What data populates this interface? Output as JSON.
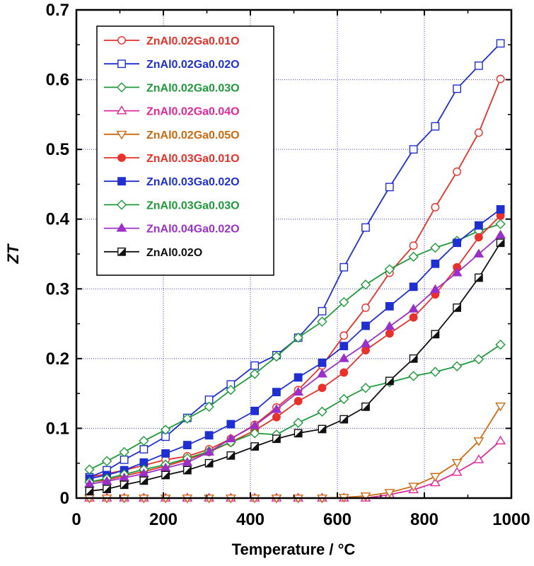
{
  "chart_data": {
    "type": "line",
    "title": "",
    "xlabel": "Temperature / °C",
    "ylabel": "ZT",
    "xlim": [
      0,
      1000
    ],
    "ylim": [
      0,
      0.7
    ],
    "xticks": [
      "0",
      "200",
      "400",
      "600",
      "800",
      "1000"
    ],
    "yticks": [
      "0",
      "0.1",
      "0.2",
      "0.3",
      "0.4",
      "0.5",
      "0.6",
      "0.7"
    ],
    "grid": true,
    "legend_position": "top-left",
    "x": [
      30,
      70,
      110,
      155,
      205,
      255,
      305,
      355,
      410,
      460,
      510,
      565,
      615,
      665,
      720,
      775,
      825,
      875,
      925,
      975
    ],
    "series": [
      {
        "name": "ZnAl0.02Ga0.01O",
        "color": "#e8312a",
        "marker": "circle",
        "filled": false,
        "values": [
          0.03,
          0.035,
          0.04,
          0.047,
          0.055,
          0.06,
          0.07,
          0.085,
          0.105,
          0.13,
          0.155,
          0.19,
          0.233,
          0.273,
          0.323,
          0.362,
          0.417,
          0.468,
          0.524,
          0.601
        ]
      },
      {
        "name": "ZnAl0.02Ga0.02O",
        "color": "#1f2fd0",
        "marker": "square",
        "filled": false,
        "values": [
          0.03,
          0.04,
          0.055,
          0.07,
          0.088,
          0.115,
          0.141,
          0.163,
          0.19,
          0.205,
          0.23,
          0.268,
          0.331,
          0.388,
          0.446,
          0.5,
          0.533,
          0.587,
          0.62,
          0.652
        ]
      },
      {
        "name": "ZnAl0.02Ga0.03O",
        "color": "#1e9a3a",
        "marker": "diamond",
        "filled": false,
        "values": [
          0.041,
          0.053,
          0.066,
          0.082,
          0.098,
          0.114,
          0.131,
          0.155,
          0.178,
          0.203,
          0.23,
          0.253,
          0.281,
          0.306,
          0.328,
          0.346,
          0.359,
          0.369,
          0.383,
          0.393
        ]
      },
      {
        "name": "ZnAl0.02Ga0.04O",
        "color": "#e0289c",
        "marker": "triangle-up",
        "filled": false,
        "values": [
          0,
          0,
          0,
          0,
          0,
          0,
          0,
          0,
          0,
          0,
          0,
          0,
          0,
          0,
          0.005,
          0.012,
          0.022,
          0.037,
          0.055,
          0.082
        ]
      },
      {
        "name": "ZnAl0.02Ga0.05O",
        "color": "#cc6a10",
        "marker": "triangle-down",
        "filled": false,
        "values": [
          0,
          0,
          0,
          0,
          0,
          0,
          0,
          0,
          0,
          0,
          0,
          0,
          0.001,
          0.003,
          0.008,
          0.017,
          0.031,
          0.051,
          0.082,
          0.132
        ]
      },
      {
        "name": "ZnAl0.03Ga0.01O",
        "color": "#e8312a",
        "marker": "circle",
        "filled": true,
        "values": [
          0.023,
          0.026,
          0.032,
          0.038,
          0.046,
          0.055,
          0.066,
          0.08,
          0.097,
          0.116,
          0.139,
          0.158,
          0.18,
          0.212,
          0.236,
          0.259,
          0.292,
          0.331,
          0.374,
          0.405
        ]
      },
      {
        "name": "ZnAl0.03Ga0.02O",
        "color": "#1f2fd0",
        "marker": "square",
        "filled": true,
        "values": [
          0.028,
          0.033,
          0.04,
          0.051,
          0.064,
          0.076,
          0.09,
          0.106,
          0.125,
          0.152,
          0.173,
          0.194,
          0.218,
          0.247,
          0.275,
          0.303,
          0.336,
          0.366,
          0.391,
          0.414
        ]
      },
      {
        "name": "ZnAl0.03Ga0.03O",
        "color": "#1e9a3a",
        "marker": "diamond",
        "filled": false,
        "values": [
          0.023,
          0.028,
          0.034,
          0.041,
          0.048,
          0.057,
          0.067,
          0.08,
          0.093,
          0.091,
          0.108,
          0.124,
          0.142,
          0.158,
          0.166,
          0.175,
          0.181,
          0.189,
          0.199,
          0.22
        ]
      },
      {
        "name": "ZnAl0.04Ga0.02O",
        "color": "#9b30c8",
        "marker": "triangle-up",
        "filled": true,
        "values": [
          0.02,
          0.024,
          0.029,
          0.035,
          0.043,
          0.051,
          0.066,
          0.085,
          0.104,
          0.127,
          0.152,
          0.178,
          0.2,
          0.221,
          0.246,
          0.271,
          0.299,
          0.323,
          0.35,
          0.377
        ]
      },
      {
        "name": "ZnAl0.02O",
        "color": "#111111",
        "marker": "square-half",
        "filled": false,
        "values": [
          0.01,
          0.013,
          0.019,
          0.025,
          0.033,
          0.04,
          0.05,
          0.061,
          0.074,
          0.085,
          0.093,
          0.099,
          0.113,
          0.131,
          0.168,
          0.2,
          0.235,
          0.273,
          0.316,
          0.366
        ]
      }
    ]
  }
}
